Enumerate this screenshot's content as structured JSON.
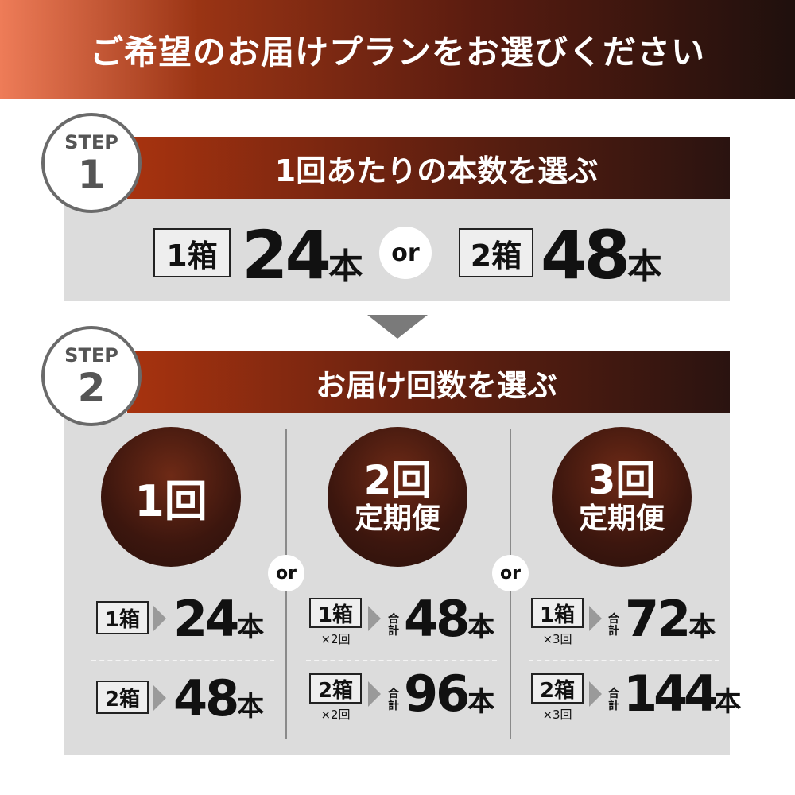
{
  "title": "ご希望のお届けプランをお選びください",
  "step1": {
    "label": "STEP",
    "number": "1",
    "title": "1回あたりの本数を選ぶ",
    "options": [
      {
        "box": "1箱",
        "count": "24",
        "unit": "本"
      },
      {
        "box": "2箱",
        "count": "48",
        "unit": "本"
      }
    ],
    "or": "or"
  },
  "step2": {
    "label": "STEP",
    "number": "2",
    "title": "お届け回数を選ぶ",
    "or": "or",
    "total_label": "合計",
    "plans": [
      {
        "name": "1回",
        "sub": "",
        "rows": [
          {
            "box": "1箱",
            "times": "",
            "count": "24",
            "unit": "本"
          },
          {
            "box": "2箱",
            "times": "",
            "count": "48",
            "unit": "本"
          }
        ]
      },
      {
        "name": "2回",
        "sub": "定期便",
        "rows": [
          {
            "box": "1箱",
            "times": "×2回",
            "count": "48",
            "unit": "本"
          },
          {
            "box": "2箱",
            "times": "×2回",
            "count": "96",
            "unit": "本"
          }
        ]
      },
      {
        "name": "3回",
        "sub": "定期便",
        "rows": [
          {
            "box": "1箱",
            "times": "×3回",
            "count": "72",
            "unit": "本"
          },
          {
            "box": "2箱",
            "times": "×3回",
            "count": "144",
            "unit": "本"
          }
        ]
      }
    ]
  },
  "colors": {
    "brand_dark": "#2a1310",
    "brand_red": "#a8330f",
    "panel": "#dcdcdc"
  }
}
